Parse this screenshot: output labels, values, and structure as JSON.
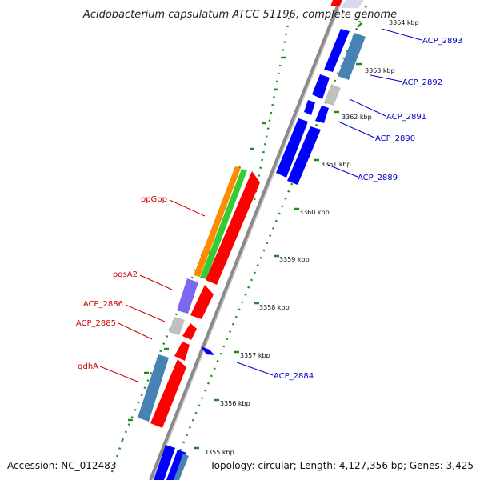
{
  "title": "Acidobacterium capsulatum ATCC 51196, complete genome",
  "footer": {
    "accession": "Accession: NC_012483",
    "summary": "Topology: circular; Length: 4,127,356 bp; Genes: 3,425"
  },
  "ticks": [
    {
      "label": "3364 kbp"
    },
    {
      "label": "3363 kbp"
    },
    {
      "label": "3362 kbp"
    },
    {
      "label": "3361 kbp"
    },
    {
      "label": "3360 kbp"
    },
    {
      "label": "3359 kbp"
    },
    {
      "label": "3358 kbp"
    },
    {
      "label": "3357 kbp"
    },
    {
      "label": "3356 kbp"
    },
    {
      "label": "3355 kbp"
    }
  ],
  "genes_left": [
    {
      "label": "ppGpp"
    },
    {
      "label": "pgsA2"
    },
    {
      "label": "ACP_2886"
    },
    {
      "label": "ACP_2885"
    },
    {
      "label": "gdhA"
    }
  ],
  "genes_right": [
    {
      "label": "ACP_2893"
    },
    {
      "label": "ACP_2892"
    },
    {
      "label": "ACP_2891"
    },
    {
      "label": "ACP_2890"
    },
    {
      "label": "ACP_2889"
    },
    {
      "label": "ACP_2884"
    }
  ],
  "colors": {
    "backbone": "#8a8a8a",
    "cds": "#ff0000",
    "rna": "#0000ff",
    "orange": "#ff8c00",
    "green": "#33cc33",
    "lightblue": "#4682b4",
    "gray": "#c0c0c0",
    "purple": "#7b68ee",
    "tick": "#228b22",
    "label_red": "#d00000",
    "label_blue": "#0000cc"
  }
}
